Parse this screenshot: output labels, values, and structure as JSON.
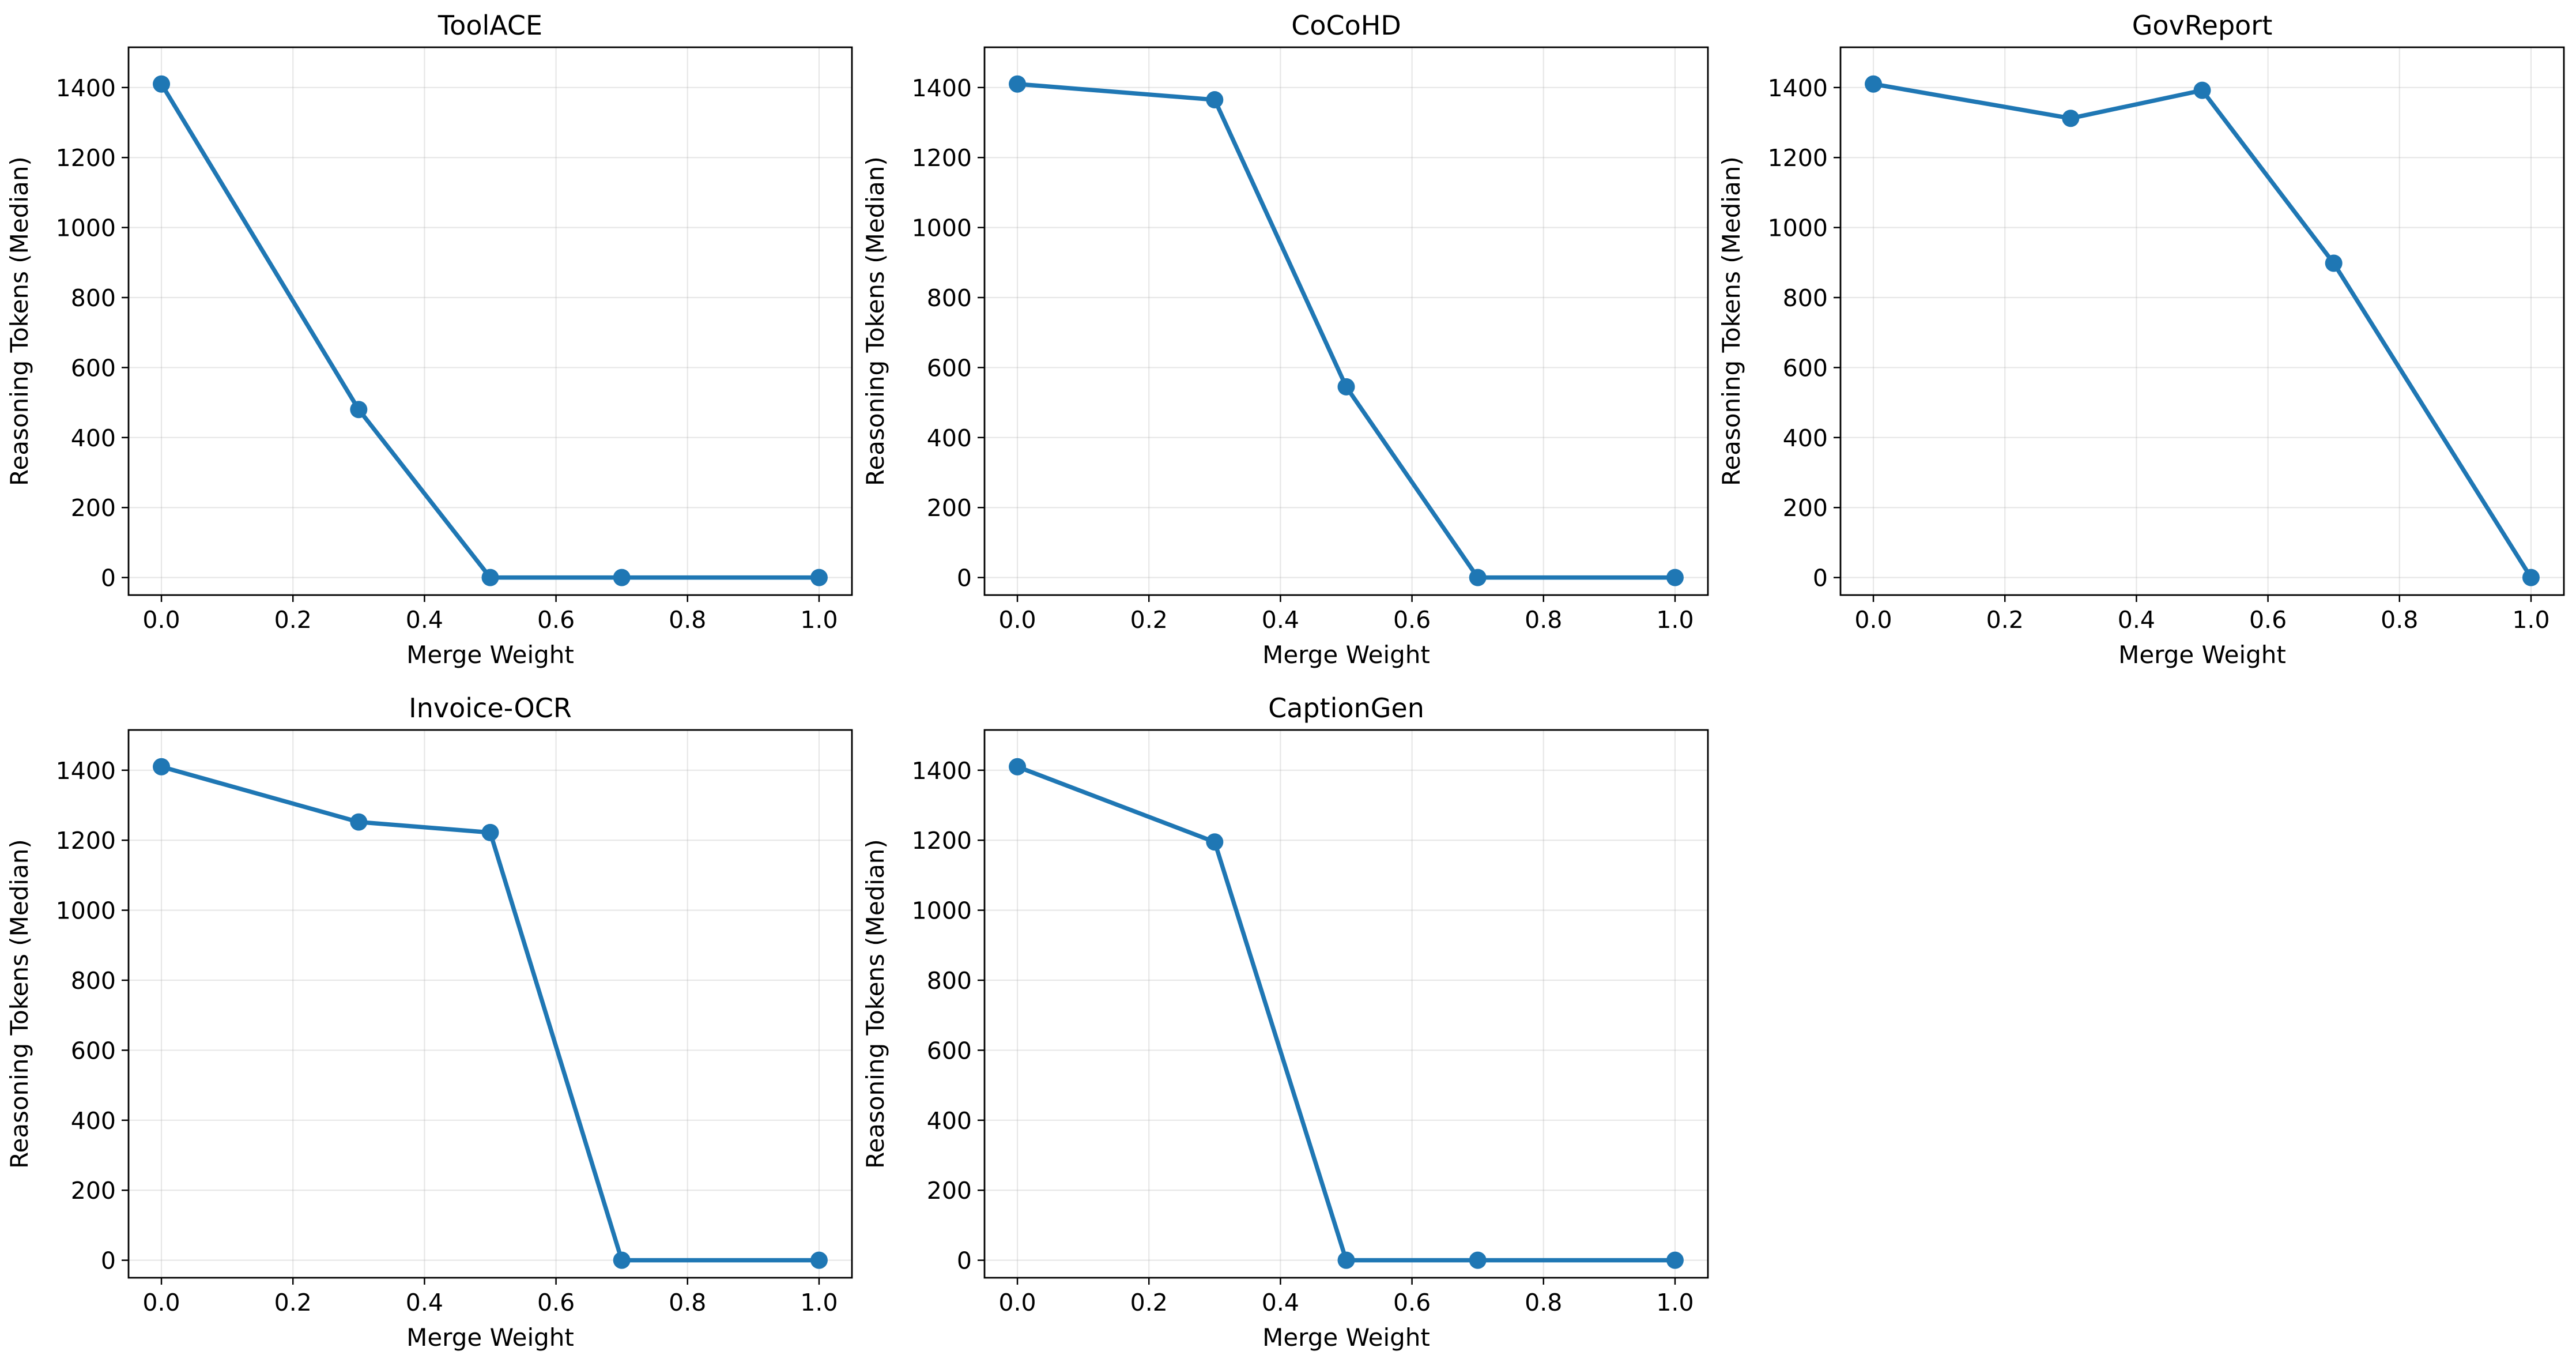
{
  "chart_data": [
    {
      "type": "line",
      "title": "ToolACE",
      "xlabel": "Merge Weight",
      "ylabel": "Reasoning Tokens (Median)",
      "x": [
        0.0,
        0.3,
        0.5,
        0.7,
        1.0
      ],
      "y": [
        1410,
        480,
        0,
        0,
        0
      ],
      "xlim": [
        -0.05,
        1.05
      ],
      "ylim": [
        -50,
        1515
      ],
      "xticks": [
        "0.0",
        "0.2",
        "0.4",
        "0.6",
        "0.8",
        "1.0"
      ],
      "yticks": [
        "0",
        "200",
        "400",
        "600",
        "800",
        "1000",
        "1200",
        "1400"
      ],
      "grid": true,
      "color": "#1f77b4"
    },
    {
      "type": "line",
      "title": "CoCoHD",
      "xlabel": "Merge Weight",
      "ylabel": "Reasoning Tokens (Median)",
      "x": [
        0.0,
        0.3,
        0.5,
        0.7,
        1.0
      ],
      "y": [
        1410,
        1365,
        545,
        0,
        0
      ],
      "xlim": [
        -0.05,
        1.05
      ],
      "ylim": [
        -50,
        1515
      ],
      "xticks": [
        "0.0",
        "0.2",
        "0.4",
        "0.6",
        "0.8",
        "1.0"
      ],
      "yticks": [
        "0",
        "200",
        "400",
        "600",
        "800",
        "1000",
        "1200",
        "1400"
      ],
      "grid": true,
      "color": "#1f77b4"
    },
    {
      "type": "line",
      "title": "GovReport",
      "xlabel": "Merge Weight",
      "ylabel": "Reasoning Tokens (Median)",
      "x": [
        0.0,
        0.3,
        0.5,
        0.7,
        1.0
      ],
      "y": [
        1410,
        1312,
        1392,
        898,
        0
      ],
      "xlim": [
        -0.05,
        1.05
      ],
      "ylim": [
        -50,
        1515
      ],
      "xticks": [
        "0.0",
        "0.2",
        "0.4",
        "0.6",
        "0.8",
        "1.0"
      ],
      "yticks": [
        "0",
        "200",
        "400",
        "600",
        "800",
        "1000",
        "1200",
        "1400"
      ],
      "grid": true,
      "color": "#1f77b4"
    },
    {
      "type": "line",
      "title": "Invoice-OCR",
      "xlabel": "Merge Weight",
      "ylabel": "Reasoning Tokens (Median)",
      "x": [
        0.0,
        0.3,
        0.5,
        0.7,
        1.0
      ],
      "y": [
        1410,
        1252,
        1222,
        0,
        0
      ],
      "xlim": [
        -0.05,
        1.05
      ],
      "ylim": [
        -50,
        1515
      ],
      "xticks": [
        "0.0",
        "0.2",
        "0.4",
        "0.6",
        "0.8",
        "1.0"
      ],
      "yticks": [
        "0",
        "200",
        "400",
        "600",
        "800",
        "1000",
        "1200",
        "1400"
      ],
      "grid": true,
      "color": "#1f77b4"
    },
    {
      "type": "line",
      "title": "CaptionGen",
      "xlabel": "Merge Weight",
      "ylabel": "Reasoning Tokens (Median)",
      "x": [
        0.0,
        0.3,
        0.5,
        0.7,
        1.0
      ],
      "y": [
        1410,
        1195,
        0,
        0,
        0
      ],
      "xlim": [
        -0.05,
        1.05
      ],
      "ylim": [
        -50,
        1515
      ],
      "xticks": [
        "0.0",
        "0.2",
        "0.4",
        "0.6",
        "0.8",
        "1.0"
      ],
      "yticks": [
        "0",
        "200",
        "400",
        "600",
        "800",
        "1000",
        "1200",
        "1400"
      ],
      "grid": true,
      "color": "#1f77b4"
    }
  ]
}
